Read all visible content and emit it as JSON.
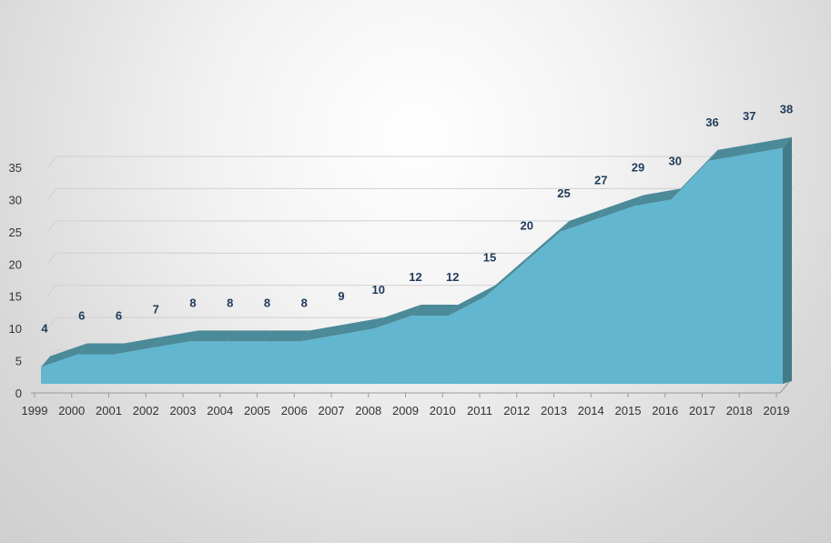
{
  "chart_data": {
    "type": "area",
    "x": [
      "1999",
      "2000",
      "2001",
      "2002",
      "2003",
      "2004",
      "2005",
      "2006",
      "2007",
      "2008",
      "2009",
      "2010",
      "2011",
      "2012",
      "2013",
      "2014",
      "2015",
      "2016",
      "2017",
      "2018",
      "2019"
    ],
    "values": [
      4,
      6,
      6,
      7,
      8,
      8,
      8,
      8,
      9,
      10,
      12,
      12,
      15,
      20,
      25,
      27,
      29,
      30,
      36,
      37,
      38
    ],
    "title": "",
    "xlabel": "",
    "ylabel": "",
    "ylim": [
      0,
      38
    ],
    "yticks": [
      0,
      5,
      10,
      15,
      20,
      25,
      30,
      35
    ],
    "grid": true,
    "legend": "none",
    "three_d": true,
    "colors": {
      "area_front": "#62b6cf",
      "area_top": "#4b8a98",
      "area_side": "#427c89",
      "label": "#1f3a5a",
      "grid": "#d0d0d0",
      "axis": "#9a9a9a"
    }
  }
}
